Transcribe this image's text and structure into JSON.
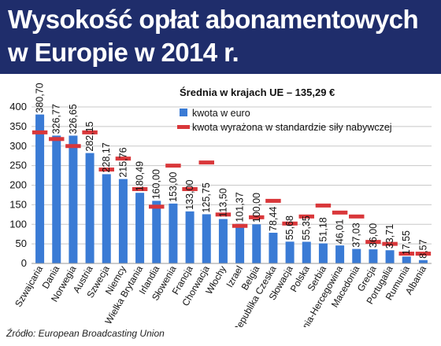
{
  "title": {
    "line1": "Wysokość opłat abonamentowych",
    "line2": "w Europie w 2014 r."
  },
  "source": "Źródło: European Broadcasting Union",
  "colors": {
    "title_band": "#1f2d6b",
    "bar": "#3a7bd5",
    "marker": "#d9373a"
  },
  "chart_data": {
    "type": "bar",
    "subtitle": "Średnia w krajach UE – 135,29 €",
    "categories": [
      "Szwajcaria",
      "Dania",
      "Norwegia",
      "Austria",
      "Szwecja",
      "Niemcy",
      "Wielka Brytania",
      "Irlandia",
      "Słowenia",
      "Francja",
      "Chorwacja",
      "Włochy",
      "Izrael",
      "Belgia",
      "Republika Czeska",
      "Słowacja",
      "Polska",
      "Serbia",
      "Bośnia-Hercegowina",
      "Macedonia",
      "Grecja",
      "Portugalia",
      "Rumunia",
      "Albania"
    ],
    "series": [
      {
        "name": "kwota w euro",
        "values": [
          380.7,
          326.77,
          326.65,
          282.15,
          228.17,
          215.76,
          180.49,
          160.0,
          153.0,
          133.0,
          125.75,
          113.5,
          101.37,
          100.0,
          78.44,
          55.68,
          55.35,
          51.18,
          46.01,
          37.03,
          36.0,
          33.71,
          17.55,
          8.57
        ],
        "labels": [
          "380,70",
          "326,77",
          "326,65",
          "282,15",
          "228,17",
          "215,76",
          "180,49",
          "160,00",
          "153,00",
          "133,00",
          "125,75",
          "113,50",
          "101,37",
          "100,00",
          "78,44",
          "55,68",
          "55,35",
          "51,18",
          "46,01",
          "37,03",
          "36,00",
          "33,71",
          "17,55",
          "8,57"
        ]
      },
      {
        "name": "kwota wyrażona w standardzie siły nabywczej",
        "values": [
          335,
          318,
          300,
          335,
          240,
          268,
          190,
          145,
          250,
          190,
          258,
          125,
          96,
          118,
          160,
          102,
          120,
          148,
          130,
          120,
          55,
          50,
          25,
          25
        ]
      }
    ],
    "ylim": [
      0,
      400
    ],
    "yticks": [
      0,
      50,
      100,
      150,
      200,
      250,
      300,
      350,
      400
    ],
    "grid": true,
    "legend_position": "top-right"
  }
}
